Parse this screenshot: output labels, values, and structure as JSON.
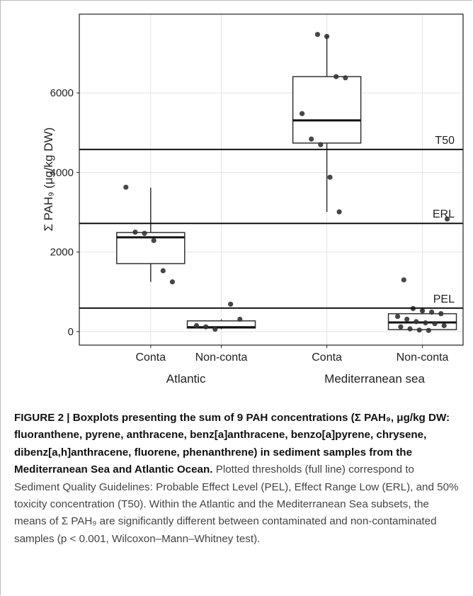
{
  "chart_data": {
    "type": "boxplot",
    "y_label": "Σ PAH₉ (μg/kg DW)",
    "categories": [
      "Conta",
      "Non-conta",
      "Conta",
      "Non-conta"
    ],
    "groups": [
      "Atlantic",
      "Mediterranean sea"
    ],
    "ylim": [
      -340,
      7980
    ],
    "yticks": [
      0,
      2000,
      4000,
      6000
    ],
    "grid": true,
    "thresholds": [
      {
        "name": "T50",
        "value": 4580
      },
      {
        "name": "ERL",
        "value": 2720
      },
      {
        "name": "PEL",
        "value": 590
      }
    ],
    "boxes": [
      {
        "whisker_low": 1250,
        "q1": 1710,
        "median": 2370,
        "q3": 2490,
        "whisker_high": 3620,
        "points": [
          3630,
          2500,
          2470,
          2290,
          1530,
          1250
        ]
      },
      {
        "whisker_low": 60,
        "q1": 90,
        "median": 110,
        "q3": 270,
        "whisker_high": 310,
        "points": [
          690,
          310,
          150,
          120,
          60
        ]
      },
      {
        "whisker_low": 3010,
        "q1": 4740,
        "median": 5310,
        "q3": 6410,
        "whisker_high": 7470,
        "points": [
          7470,
          7420,
          6410,
          6380,
          5480,
          4840,
          4700,
          3880,
          3010
        ]
      },
      {
        "whisker_low": 30,
        "q1": 50,
        "median": 230,
        "q3": 450,
        "whisker_high": 600,
        "points": [
          2830,
          1300,
          580,
          520,
          490,
          450,
          380,
          310,
          250,
          220,
          200,
          150,
          120,
          70,
          40,
          30
        ]
      }
    ],
    "color": "#333333"
  },
  "caption": {
    "bold": "FIGURE 2 | Boxplots presenting the sum of 9 PAH concentrations (Σ PAH₉, μg/kg DW: fluoranthene, pyrene, anthracene, benz[a]anthracene, benzo[a]pyrene, chrysene, dibenz[a,h]anthracene, fluorene, phenanthrene) in sediment samples from the Mediterranean Sea and Atlantic Ocean.",
    "text": "Plotted thresholds (full line) correspond to Sediment Quality Guidelines: Probable Effect Level (PEL), Effect Range Low (ERL), and 50% toxicity concentration (T50). Within the Atlantic and the Mediterranean Sea subsets, the means of Σ PAH₉ are significantly different between contaminated and non-contaminated samples (p < 0.001, Wilcoxon–Mann–Whitney test)."
  }
}
